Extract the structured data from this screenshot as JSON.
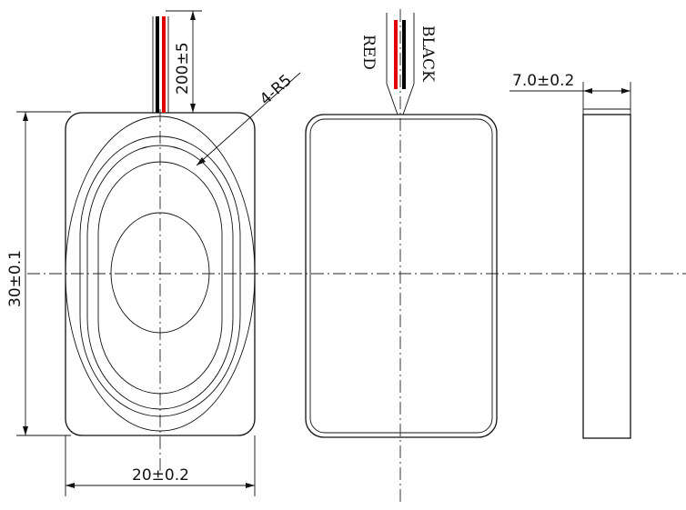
{
  "dimensions": {
    "height": "30±0.1",
    "width": "20±0.2",
    "thickness": "7.0±0.2",
    "lead_length": "200±5",
    "corner_radius": "4-R5"
  },
  "wire_labels": {
    "red": "RED",
    "black": "BLACK"
  },
  "colors": {
    "line": "#111111",
    "red_wire": "#e00000",
    "black_wire": "#000000"
  }
}
